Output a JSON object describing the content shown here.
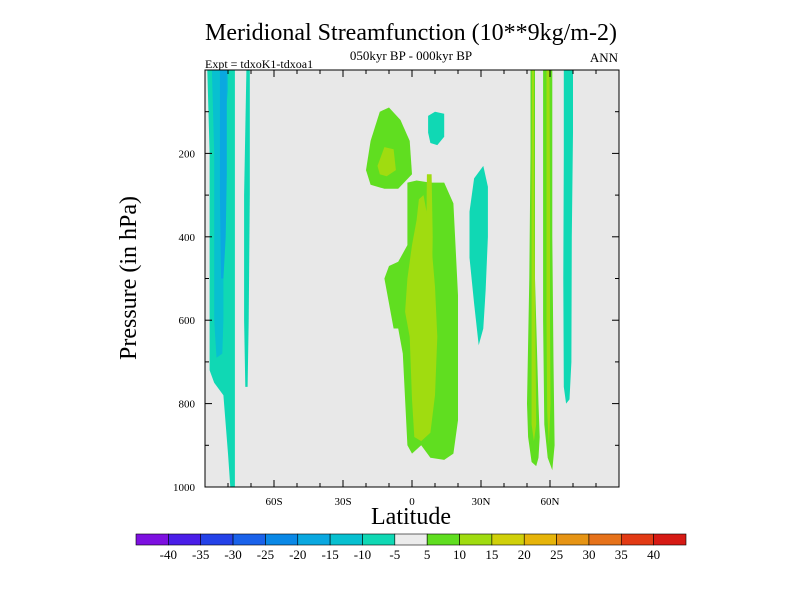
{
  "chart_data": {
    "type": "contour",
    "title": "Meridional Streamfunction (10**9kg/m-2)",
    "subtitle": "050kyr BP - 000kyr BP",
    "left_label": "Expt = tdxoK1-tdxoa1",
    "right_label": "ANN",
    "xlabel": "Latitude",
    "ylabel": "Pressure (in hPa)",
    "xlim": [
      -90,
      90
    ],
    "ylim": [
      0,
      1000
    ],
    "y_reversed": true,
    "x_ticks": [
      {
        "value": -60,
        "label": "60S"
      },
      {
        "value": -30,
        "label": "30S"
      },
      {
        "value": 0,
        "label": "0"
      },
      {
        "value": 30,
        "label": "30N"
      },
      {
        "value": 60,
        "label": "60N"
      }
    ],
    "y_ticks": [
      {
        "value": 200,
        "label": "200"
      },
      {
        "value": 400,
        "label": "400"
      },
      {
        "value": 600,
        "label": "600"
      },
      {
        "value": 800,
        "label": "800"
      },
      {
        "value": 1000,
        "label": "1000"
      }
    ],
    "background_color": "#e8e8e8",
    "regions": [
      {
        "name": "sh-outer-band",
        "level": -10,
        "color": "#10d8b4",
        "points": [
          [
            -90,
            0
          ],
          [
            -77,
            0
          ],
          [
            -77,
            1000
          ],
          [
            -79,
            1000
          ],
          [
            -80,
            920
          ],
          [
            -81,
            850
          ],
          [
            -82,
            780
          ],
          [
            -86,
            750
          ],
          [
            -88,
            720
          ],
          [
            -88,
            200
          ],
          [
            -89,
            0
          ]
        ]
      },
      {
        "name": "sh-inner-band",
        "level": -15,
        "color": "#08c0d0",
        "points": [
          [
            -87,
            0
          ],
          [
            -80,
            0
          ],
          [
            -80,
            50
          ],
          [
            -82,
            150
          ],
          [
            -82,
            600
          ],
          [
            -82.5,
            680
          ],
          [
            -85,
            690
          ],
          [
            -86,
            600
          ],
          [
            -86,
            200
          ]
        ]
      },
      {
        "name": "sh-core-band",
        "level": -20,
        "color": "#0aa8e0",
        "points": [
          [
            -83.5,
            0
          ],
          [
            -80.5,
            0
          ],
          [
            -80.5,
            250
          ],
          [
            -81,
            400
          ],
          [
            -82,
            500
          ],
          [
            -83,
            500
          ],
          [
            -83.5,
            300
          ]
        ]
      },
      {
        "name": "sh-narrow-band",
        "level": -10,
        "color": "#10d8b4",
        "points": [
          [
            -72,
            0
          ],
          [
            -70.5,
            0
          ],
          [
            -70.5,
            300
          ],
          [
            -71,
            600
          ],
          [
            -71.5,
            760
          ],
          [
            -72.5,
            760
          ],
          [
            -73,
            600
          ],
          [
            -73,
            300
          ]
        ]
      },
      {
        "name": "tropical-upper-lobe",
        "level": 5,
        "color": "#60de20",
        "points": [
          [
            -20,
            240
          ],
          [
            -18,
            170
          ],
          [
            -14,
            100
          ],
          [
            -10,
            90
          ],
          [
            -5,
            120
          ],
          [
            -1,
            170
          ],
          [
            0,
            250
          ],
          [
            -6,
            285
          ],
          [
            -12,
            285
          ],
          [
            -18,
            275
          ]
        ]
      },
      {
        "name": "tropical-upper-core",
        "level": 10,
        "color": "#a0dc10",
        "points": [
          [
            -15,
            230
          ],
          [
            -12,
            185
          ],
          [
            -8,
            190
          ],
          [
            -7,
            240
          ],
          [
            -11,
            255
          ],
          [
            -14,
            250
          ]
        ]
      },
      {
        "name": "tropical-main-column",
        "level": 5,
        "color": "#60de20",
        "points": [
          [
            -2,
            270
          ],
          [
            2,
            265
          ],
          [
            8,
            270
          ],
          [
            14,
            270
          ],
          [
            18,
            320
          ],
          [
            20,
            540
          ],
          [
            20,
            700
          ],
          [
            20,
            840
          ],
          [
            18,
            920
          ],
          [
            14,
            935
          ],
          [
            8,
            930
          ],
          [
            4,
            900
          ],
          [
            0,
            920
          ],
          [
            -2,
            900
          ],
          [
            -4,
            680
          ],
          [
            -6,
            620
          ],
          [
            -8,
            620
          ],
          [
            -10,
            560
          ],
          [
            -12,
            500
          ],
          [
            -10,
            470
          ],
          [
            -6,
            460
          ],
          [
            -2,
            420
          ]
        ]
      },
      {
        "name": "tropical-main-core",
        "level": 10,
        "color": "#a0dc10",
        "points": [
          [
            3,
            310
          ],
          [
            5,
            300
          ],
          [
            8,
            390
          ],
          [
            10,
            520
          ],
          [
            11,
            640
          ],
          [
            10,
            780
          ],
          [
            8,
            870
          ],
          [
            4,
            890
          ],
          [
            1,
            880
          ],
          [
            0,
            790
          ],
          [
            -1,
            640
          ],
          [
            -3,
            580
          ],
          [
            -2,
            500
          ],
          [
            0,
            420
          ],
          [
            2,
            360
          ]
        ]
      },
      {
        "name": "tropical-inner-core",
        "level": 10,
        "color": "#a0dc10",
        "points": [
          [
            6.5,
            250
          ],
          [
            8.5,
            250
          ],
          [
            9,
            400
          ],
          [
            8.5,
            560
          ],
          [
            7,
            560
          ],
          [
            6.2,
            400
          ]
        ]
      },
      {
        "name": "tropical-upper-negative",
        "level": -10,
        "color": "#10d8b4",
        "points": [
          [
            7,
            110
          ],
          [
            10,
            100
          ],
          [
            14,
            105
          ],
          [
            14,
            160
          ],
          [
            11,
            180
          ],
          [
            8,
            175
          ],
          [
            7,
            150
          ]
        ]
      },
      {
        "name": "subtropical-negative",
        "level": -10,
        "color": "#10d8b4",
        "points": [
          [
            25,
            340
          ],
          [
            27,
            260
          ],
          [
            31,
            230
          ],
          [
            33,
            280
          ],
          [
            33,
            400
          ],
          [
            32,
            530
          ],
          [
            31,
            620
          ],
          [
            29,
            660
          ],
          [
            27,
            560
          ],
          [
            25,
            450
          ]
        ]
      },
      {
        "name": "nh-band-a",
        "level": 5,
        "color": "#60de20",
        "points": [
          [
            51.5,
            0
          ],
          [
            53.5,
            0
          ],
          [
            53.5,
            200
          ],
          [
            53.5,
            500
          ],
          [
            55,
            800
          ],
          [
            55.5,
            880
          ],
          [
            55,
            930
          ],
          [
            54,
            950
          ],
          [
            52,
            940
          ],
          [
            50.5,
            880
          ],
          [
            50,
            800
          ],
          [
            51,
            500
          ],
          [
            51.5,
            200
          ]
        ]
      },
      {
        "name": "nh-band-a-core",
        "level": 10,
        "color": "#a0dc10",
        "points": [
          [
            52.2,
            0
          ],
          [
            53,
            0
          ],
          [
            53.2,
            400
          ],
          [
            53.8,
            700
          ],
          [
            54,
            850
          ],
          [
            53,
            890
          ],
          [
            52,
            850
          ],
          [
            52,
            600
          ],
          [
            52,
            300
          ]
        ]
      },
      {
        "name": "nh-band-b",
        "level": 5,
        "color": "#60de20",
        "points": [
          [
            57,
            0
          ],
          [
            61,
            0
          ],
          [
            61,
            400
          ],
          [
            61.5,
            700
          ],
          [
            62,
            900
          ],
          [
            61,
            960
          ],
          [
            59,
            930
          ],
          [
            57.5,
            850
          ],
          [
            57,
            600
          ],
          [
            57,
            300
          ]
        ]
      },
      {
        "name": "nh-band-b-core",
        "level": 10,
        "color": "#a0dc10",
        "points": [
          [
            58.5,
            0
          ],
          [
            59.8,
            0
          ],
          [
            60,
            300
          ],
          [
            60,
            600
          ],
          [
            60.2,
            800
          ],
          [
            59.5,
            900
          ],
          [
            58.8,
            820
          ],
          [
            58.5,
            600
          ]
        ]
      },
      {
        "name": "nh-negative-band",
        "level": -10,
        "color": "#10d8b4",
        "points": [
          [
            66,
            0
          ],
          [
            70,
            0
          ],
          [
            70,
            150
          ],
          [
            69.5,
            400
          ],
          [
            69.3,
            700
          ],
          [
            68.5,
            790
          ],
          [
            67,
            800
          ],
          [
            66,
            760
          ],
          [
            65.8,
            500
          ],
          [
            66,
            200
          ]
        ]
      }
    ],
    "legend": {
      "levels": [
        "-40",
        "-35",
        "-30",
        "-25",
        "-20",
        "-15",
        "-10",
        "-5",
        "5",
        "10",
        "15",
        "20",
        "25",
        "30",
        "35",
        "40"
      ],
      "colors": [
        "#7d10e0",
        "#4a1ee8",
        "#2442e8",
        "#1a62ea",
        "#0a88e6",
        "#0aa8e0",
        "#08c0d0",
        "#10d8b4",
        "#ececec",
        "#60de20",
        "#a0dc10",
        "#d0d00a",
        "#e6b40a",
        "#e69414",
        "#e6721a",
        "#e23a14",
        "#d61a14"
      ]
    }
  }
}
